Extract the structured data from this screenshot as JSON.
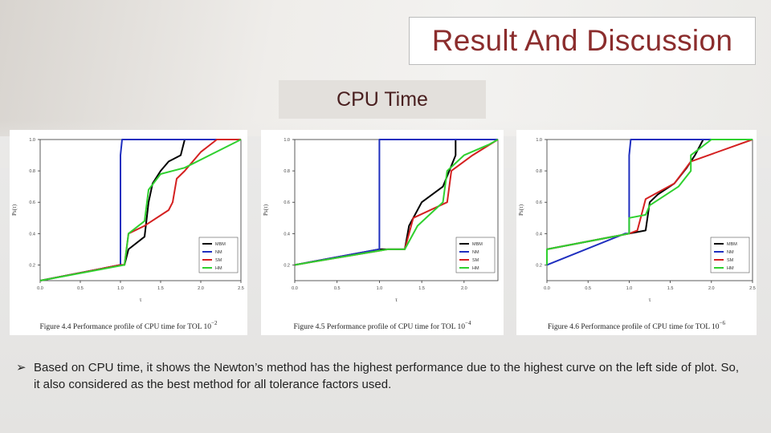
{
  "slide": {
    "title": "Result And Discussion",
    "subtitle": "CPU Time",
    "bullet_glyph": "➢",
    "bullet": "Based on CPU time, it shows the Newton’s method has the highest performance due to the highest curve on the left side of plot. So, it also considered as the best method for all tolerance factors used."
  },
  "colors": {
    "MBM": "#000000",
    "NM": "#1f2fbf",
    "SM": "#d42020",
    "HM": "#2fd02f"
  },
  "chart_data": [
    {
      "type": "line",
      "caption": "Figure 4.4 Performance profile of CPU time for TOL 10",
      "caption_exp": "−2",
      "xlabel": "τ",
      "ylabel": "Ps(τ)",
      "xlim": [
        0,
        2.5
      ],
      "ylim": [
        0.1,
        1.0
      ],
      "xticks": [
        "0.0",
        "0.5",
        "1.0",
        "1.5",
        "2.0",
        "2.5"
      ],
      "yticks": [
        "0.2",
        "0.4",
        "0.6",
        "0.8",
        "1.0"
      ],
      "legend": [
        "MBM",
        "NM",
        "SM",
        "HM"
      ],
      "series": [
        {
          "name": "MBM",
          "points": [
            [
              0,
              0.1
            ],
            [
              1.0,
              0.2
            ],
            [
              1.05,
              0.2
            ],
            [
              1.1,
              0.3
            ],
            [
              1.3,
              0.38
            ],
            [
              1.35,
              0.6
            ],
            [
              1.4,
              0.72
            ],
            [
              1.5,
              0.8
            ],
            [
              1.6,
              0.86
            ],
            [
              1.75,
              0.9
            ],
            [
              1.8,
              1.0
            ],
            [
              2.5,
              1.0
            ]
          ]
        },
        {
          "name": "NM",
          "points": [
            [
              0,
              0.1
            ],
            [
              1.0,
              0.2
            ],
            [
              1.0,
              0.9
            ],
            [
              1.02,
              1.0
            ],
            [
              2.5,
              1.0
            ]
          ]
        },
        {
          "name": "SM",
          "points": [
            [
              0,
              0.1
            ],
            [
              1.0,
              0.2
            ],
            [
              1.05,
              0.2
            ],
            [
              1.1,
              0.4
            ],
            [
              1.3,
              0.45
            ],
            [
              1.6,
              0.55
            ],
            [
              1.65,
              0.6
            ],
            [
              1.7,
              0.75
            ],
            [
              1.8,
              0.8
            ],
            [
              2.0,
              0.92
            ],
            [
              2.2,
              1.0
            ],
            [
              2.5,
              1.0
            ]
          ]
        },
        {
          "name": "HM",
          "points": [
            [
              0,
              0.1
            ],
            [
              1.05,
              0.2
            ],
            [
              1.1,
              0.4
            ],
            [
              1.3,
              0.48
            ],
            [
              1.35,
              0.68
            ],
            [
              1.5,
              0.78
            ],
            [
              1.8,
              0.82
            ],
            [
              2.5,
              1.0
            ]
          ]
        }
      ]
    },
    {
      "type": "line",
      "caption": "Figure 4.5 Performance profile of CPU time for TOL 10",
      "caption_exp": "−4",
      "xlabel": "τ",
      "ylabel": "Ps(τ)",
      "xlim": [
        0,
        2.4
      ],
      "ylim": [
        0.1,
        1.0
      ],
      "xticks": [
        "0.0",
        "0.5",
        "1.0",
        "1.5",
        "2.0"
      ],
      "yticks": [
        "0.2",
        "0.4",
        "0.6",
        "0.8",
        "1.0"
      ],
      "legend": [
        "MBM",
        "NM",
        "SM",
        "HM"
      ],
      "series": [
        {
          "name": "MBM",
          "points": [
            [
              0,
              0.2
            ],
            [
              1.0,
              0.3
            ],
            [
              1.3,
              0.3
            ],
            [
              1.35,
              0.45
            ],
            [
              1.5,
              0.6
            ],
            [
              1.75,
              0.7
            ],
            [
              1.9,
              0.9
            ],
            [
              1.9,
              1.0
            ],
            [
              2.4,
              1.0
            ]
          ]
        },
        {
          "name": "NM",
          "points": [
            [
              0,
              0.2
            ],
            [
              1.0,
              0.3
            ],
            [
              1.0,
              1.0
            ],
            [
              2.4,
              1.0
            ]
          ]
        },
        {
          "name": "SM",
          "points": [
            [
              0,
              0.2
            ],
            [
              1.1,
              0.3
            ],
            [
              1.3,
              0.3
            ],
            [
              1.4,
              0.5
            ],
            [
              1.8,
              0.6
            ],
            [
              1.85,
              0.8
            ],
            [
              2.1,
              0.9
            ],
            [
              2.4,
              1.0
            ]
          ]
        },
        {
          "name": "HM",
          "points": [
            [
              0,
              0.2
            ],
            [
              1.1,
              0.3
            ],
            [
              1.3,
              0.3
            ],
            [
              1.45,
              0.45
            ],
            [
              1.75,
              0.6
            ],
            [
              1.8,
              0.8
            ],
            [
              2.0,
              0.9
            ],
            [
              2.3,
              0.97
            ],
            [
              2.4,
              1.0
            ]
          ]
        }
      ]
    },
    {
      "type": "line",
      "caption": "Figure 4.6 Performance profile of CPU time for TOL 10",
      "caption_exp": "−6",
      "xlabel": "τ",
      "ylabel": "Ps(τ)",
      "xlim": [
        0,
        2.5
      ],
      "ylim": [
        0.1,
        1.0
      ],
      "xticks": [
        "0.0",
        "0.5",
        "1.0",
        "1.5",
        "2.0",
        "2.5"
      ],
      "yticks": [
        "0.2",
        "0.4",
        "0.6",
        "0.8",
        "1.0"
      ],
      "legend": [
        "MBM",
        "NM",
        "SM",
        "HM"
      ],
      "series": [
        {
          "name": "MBM",
          "points": [
            [
              0,
              0.3
            ],
            [
              1.0,
              0.4
            ],
            [
              1.2,
              0.42
            ],
            [
              1.25,
              0.6
            ],
            [
              1.35,
              0.65
            ],
            [
              1.55,
              0.72
            ],
            [
              1.7,
              0.82
            ],
            [
              1.8,
              0.9
            ],
            [
              1.9,
              1.0
            ],
            [
              2.5,
              1.0
            ]
          ]
        },
        {
          "name": "NM",
          "points": [
            [
              0,
              0.2
            ],
            [
              0.95,
              0.4
            ],
            [
              1.0,
              0.4
            ],
            [
              1.0,
              0.9
            ],
            [
              1.02,
              1.0
            ],
            [
              2.5,
              1.0
            ]
          ]
        },
        {
          "name": "SM",
          "points": [
            [
              0,
              0.3
            ],
            [
              1.0,
              0.4
            ],
            [
              1.1,
              0.42
            ],
            [
              1.2,
              0.62
            ],
            [
              1.55,
              0.72
            ],
            [
              1.75,
              0.86
            ],
            [
              2.5,
              1.0
            ]
          ]
        },
        {
          "name": "HM",
          "points": [
            [
              0,
              0.2
            ],
            [
              0,
              0.3
            ],
            [
              1.0,
              0.4
            ],
            [
              1.0,
              0.5
            ],
            [
              1.2,
              0.52
            ],
            [
              1.25,
              0.58
            ],
            [
              1.6,
              0.7
            ],
            [
              1.75,
              0.8
            ],
            [
              1.75,
              0.9
            ],
            [
              2.0,
              1.0
            ],
            [
              2.5,
              1.0
            ]
          ]
        }
      ]
    }
  ]
}
